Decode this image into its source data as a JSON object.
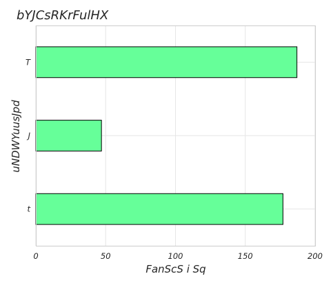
{
  "chart_data": {
    "type": "bar",
    "orientation": "horizontal",
    "title": "bYJCsRKrFulHX",
    "xlabel": "FanScS i Sq",
    "ylabel": "uNDWYuusJpd",
    "categories": [
      "T",
      "J",
      "t"
    ],
    "values": [
      187,
      47,
      177
    ],
    "xlim": [
      0,
      200
    ],
    "xticks": [
      0,
      50,
      100,
      150,
      200
    ],
    "grid": true,
    "bar_color": "#66ff99",
    "bar_edge_color": "#000000"
  }
}
